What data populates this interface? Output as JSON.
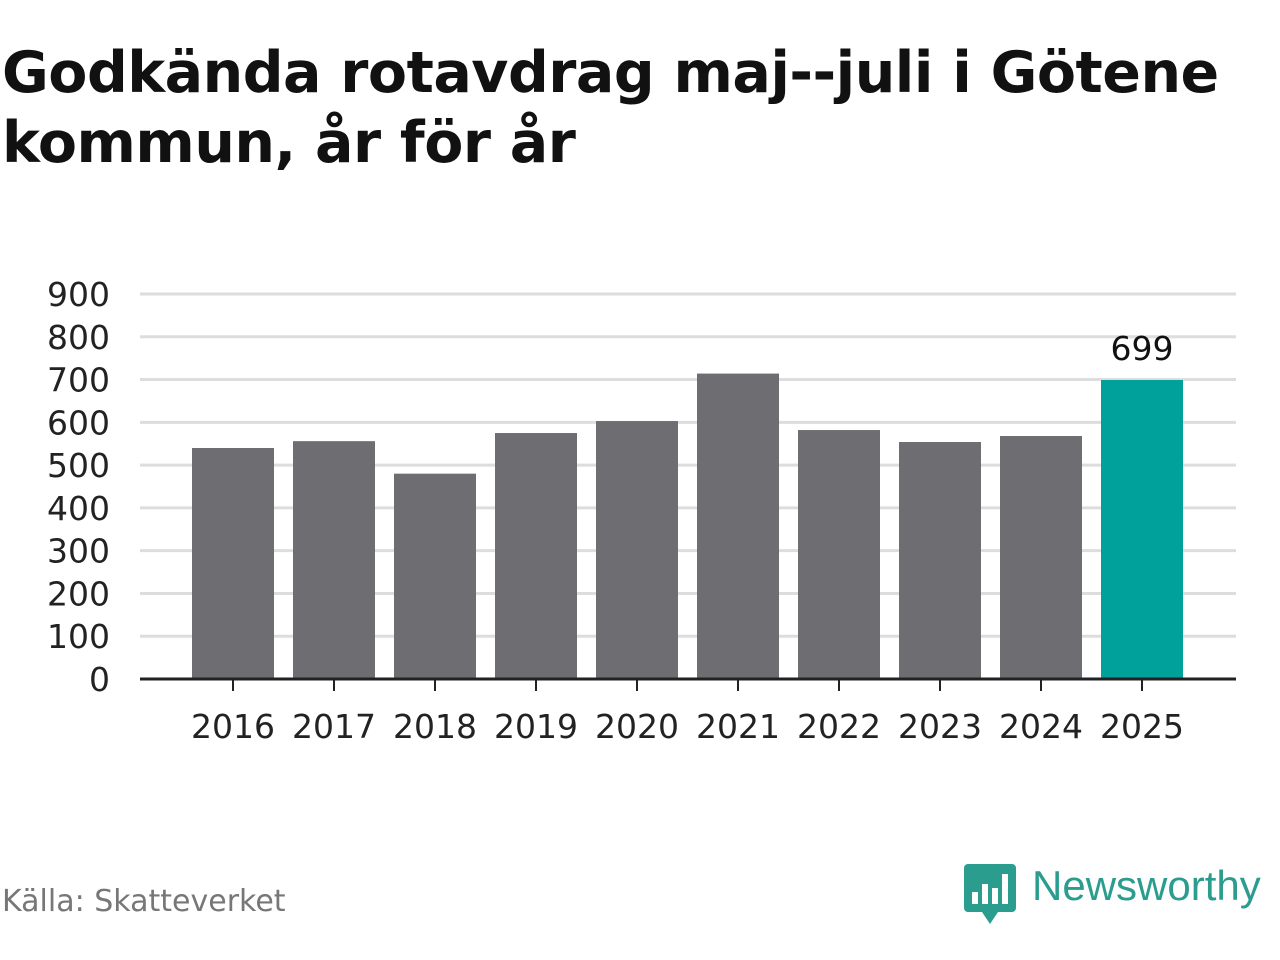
{
  "title": "Godkända rotavdrag maj--juli i Götene kommun, år för år",
  "source": "Källa: Skatteverket",
  "brand": {
    "name": "Newsworthy",
    "icon": "newsworthy-logo-icon",
    "color": "#2a9d8f"
  },
  "colors": {
    "bar": "#6e6d72",
    "highlight": "#00a19a",
    "grid": "#dddddd",
    "axis": "#222222"
  },
  "chart_data": {
    "type": "bar",
    "title": "Godkända rotavdrag maj--juli i Götene kommun, år för år",
    "xlabel": "",
    "ylabel": "",
    "categories": [
      "2016",
      "2017",
      "2018",
      "2019",
      "2020",
      "2021",
      "2022",
      "2023",
      "2024",
      "2025"
    ],
    "values": [
      540,
      556,
      480,
      575,
      603,
      714,
      582,
      554,
      568,
      699
    ],
    "highlight_index": 9,
    "data_labels": [
      {
        "category": "2025",
        "text": "699"
      }
    ],
    "ylim": [
      0,
      900
    ],
    "yticks": [
      0,
      100,
      200,
      300,
      400,
      500,
      600,
      700,
      800,
      900
    ],
    "grid": true,
    "legend": "none"
  }
}
